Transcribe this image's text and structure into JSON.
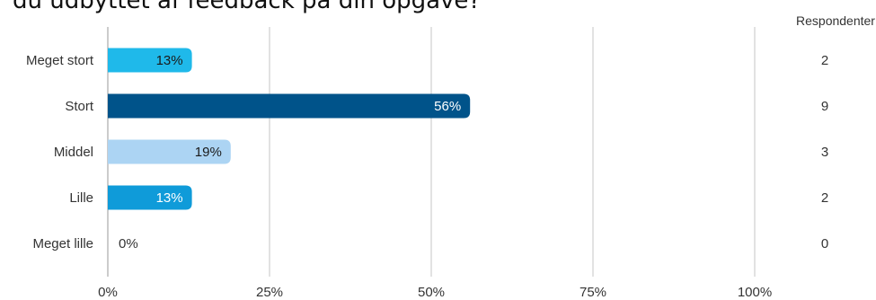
{
  "title": "du udbyttet af feedback på din opgave?",
  "respondents_header": "Respondenter",
  "chart_data": {
    "type": "bar",
    "orientation": "horizontal",
    "categories": [
      "Meget stort",
      "Stort",
      "Middel",
      "Lille",
      "Meget lille"
    ],
    "values": [
      13,
      56,
      19,
      13,
      0
    ],
    "value_labels": [
      "13%",
      "56%",
      "19%",
      "13%",
      "0%"
    ],
    "respondents": [
      "2",
      "9",
      "3",
      "2",
      "0"
    ],
    "bar_colors": [
      "#1fb9ea",
      "#00538a",
      "#acd4f3",
      "#0f9bd9",
      "#0f9bd9"
    ],
    "label_colors": [
      "#1a1a1a",
      "#ffffff",
      "#1a1a1a",
      "#ffffff",
      "#333333"
    ],
    "xlim": [
      0,
      100
    ],
    "xticks": [
      "0%",
      "25%",
      "50%",
      "75%",
      "100%"
    ],
    "xtick_values": [
      0,
      25,
      50,
      75,
      100
    ],
    "grid": true
  }
}
